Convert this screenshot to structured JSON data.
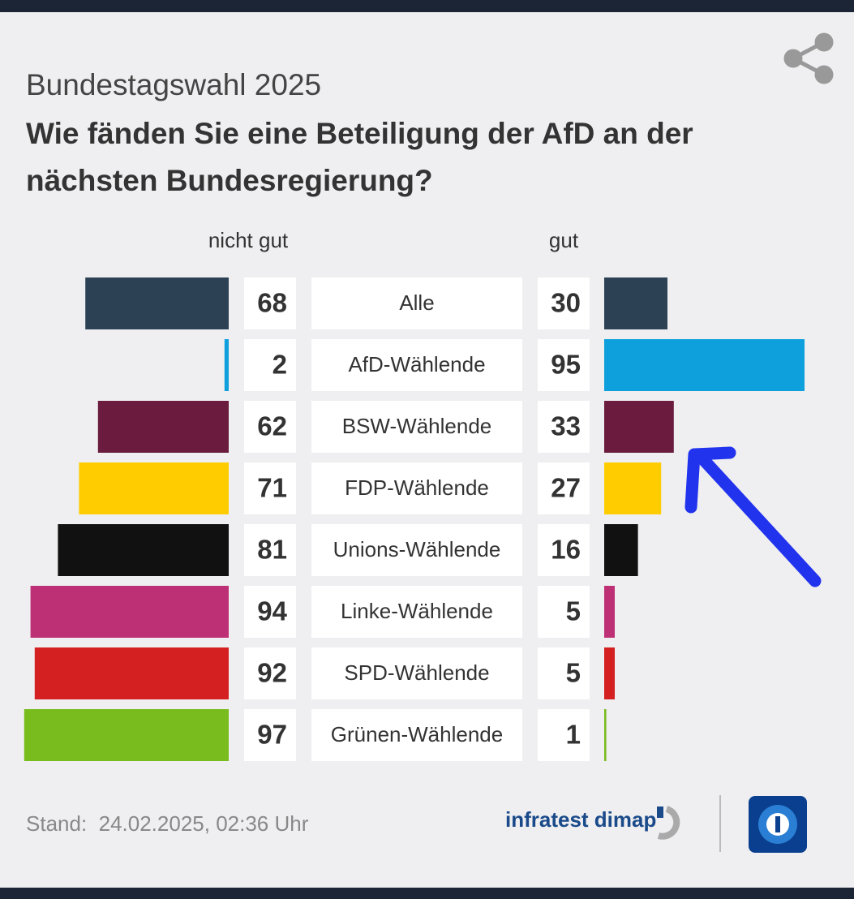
{
  "chart_data": {
    "type": "butterfly",
    "subtitle": "Bundestagswahl 2025",
    "title": "Wie fänden Sie eine Beteiligung der AfD an der nächsten Bundesregierung?",
    "categories": [
      "Alle",
      "AfD-Wählende",
      "BSW-Wählende",
      "FDP-Wählende",
      "Unions-Wählende",
      "Linke-Wählende",
      "SPD-Wählende",
      "Grünen-Wählende"
    ],
    "colors": [
      "#2c4254",
      "#0ea0dc",
      "#6a1b3e",
      "#ffcc00",
      "#111111",
      "#be3075",
      "#d42020",
      "#78bc1e"
    ],
    "series": [
      {
        "name": "nicht gut",
        "values": [
          68,
          2,
          62,
          71,
          81,
          94,
          92,
          97
        ]
      },
      {
        "name": "gut",
        "values": [
          30,
          95,
          33,
          27,
          16,
          5,
          5,
          1
        ]
      }
    ],
    "footer": "Stand:  24.02.2025, 02:36 Uhr",
    "source": "infratest dimap"
  }
}
